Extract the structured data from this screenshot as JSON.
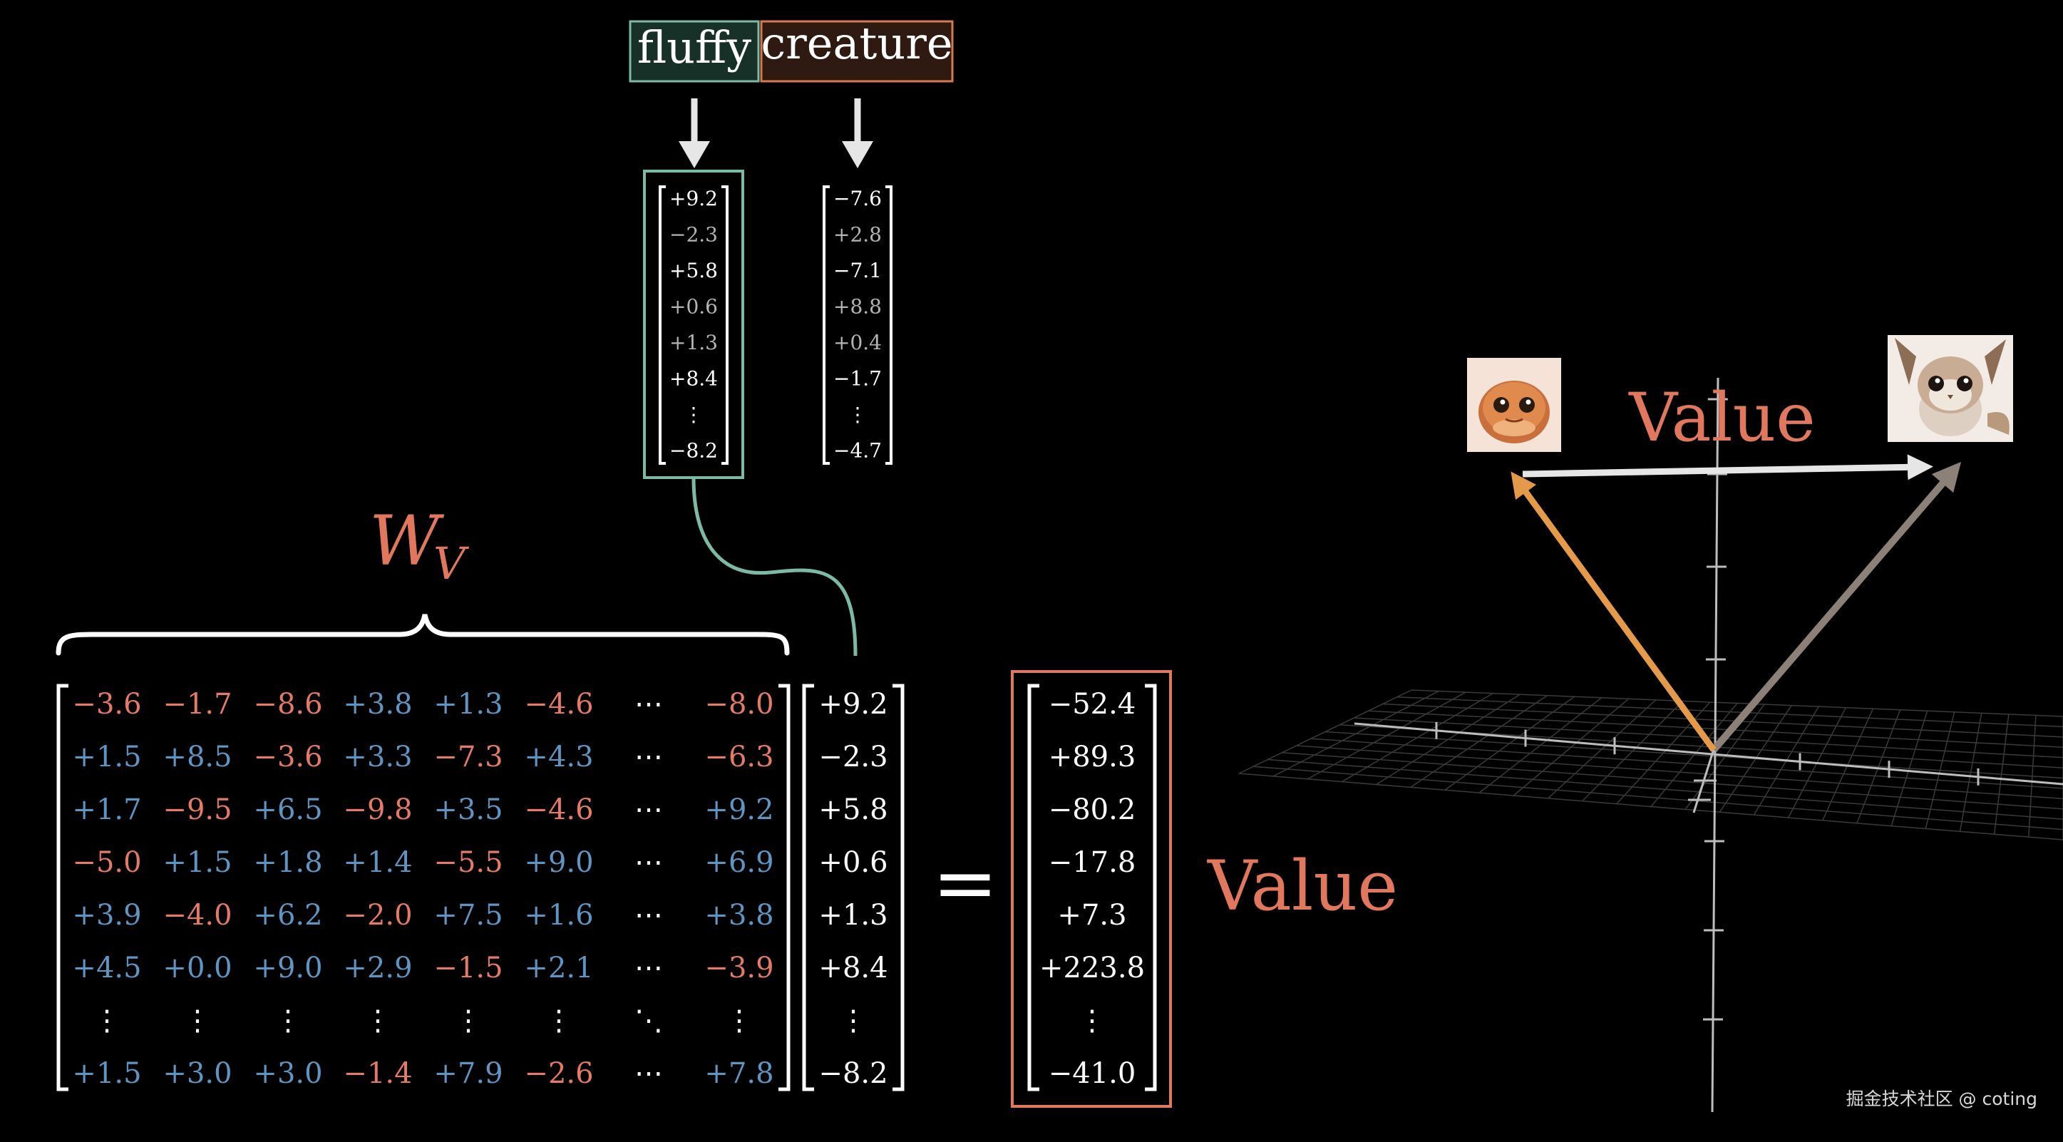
{
  "tokens": [
    {
      "word": "fluffy",
      "border": "#7dbaa3",
      "fill": "#173028"
    },
    {
      "word": "creature",
      "border": "#d9774f",
      "fill": "#2e1a10"
    }
  ],
  "embeddings": {
    "fluffy": [
      "+9.2",
      "−2.3",
      "+5.8",
      "+0.6",
      "+1.3",
      "+8.4",
      "⋮",
      "−8.2"
    ],
    "creature": [
      "−7.6",
      "+2.8",
      "−7.1",
      "+8.8",
      "+0.4",
      "−1.7",
      "⋮",
      "−4.7"
    ]
  },
  "matrix_label": "W",
  "matrix_label_sub": "V",
  "matrix": {
    "rows": [
      [
        "−3.6",
        "−1.7",
        "−8.6",
        "+3.8",
        "+1.3",
        "−4.6",
        "⋯",
        "−8.0"
      ],
      [
        "+1.5",
        "+8.5",
        "−3.6",
        "+3.3",
        "−7.3",
        "+4.3",
        "⋯",
        "−6.3"
      ],
      [
        "+1.7",
        "−9.5",
        "+6.5",
        "−9.8",
        "+3.5",
        "−4.6",
        "⋯",
        "+9.2"
      ],
      [
        "−5.0",
        "+1.5",
        "+1.8",
        "+1.4",
        "−5.5",
        "+9.0",
        "⋯",
        "+6.9"
      ],
      [
        "+3.9",
        "−4.0",
        "+6.2",
        "−2.0",
        "+7.5",
        "+1.6",
        "⋯",
        "+3.8"
      ],
      [
        "+4.5",
        "+0.0",
        "+9.0",
        "+2.9",
        "−1.5",
        "+2.1",
        "⋯",
        "−3.9"
      ],
      [
        "⋮",
        "⋮",
        "⋮",
        "⋮",
        "⋮",
        "⋮",
        "⋱",
        "⋮"
      ],
      [
        "+1.5",
        "+3.0",
        "+3.0",
        "−1.4",
        "+7.9",
        "−2.6",
        "⋯",
        "+7.8"
      ]
    ]
  },
  "input_vector": [
    "+9.2",
    "−2.3",
    "+5.8",
    "+0.6",
    "+1.3",
    "+8.4",
    "⋮",
    "−8.2"
  ],
  "equals": "=",
  "result_vector": [
    "−52.4",
    "+89.3",
    "−80.2",
    "−17.8",
    "+7.3",
    "+223.8",
    "⋮",
    "−41.0"
  ],
  "result_label": "Value",
  "plot_label": "Value",
  "watermark": "掘金技术社区 @ coting",
  "colors": {
    "positive": "#5f95c2",
    "negative": "#e57a66",
    "neutral": "#ffffff",
    "accent_teal": "#7dbaa3",
    "accent_orange": "#e1775c",
    "arrow_orange": "#e59a4a",
    "arrow_gray": "#8b8178"
  },
  "images": [
    {
      "name": "round-creature-icon"
    },
    {
      "name": "fluffy-creature-icon"
    }
  ]
}
